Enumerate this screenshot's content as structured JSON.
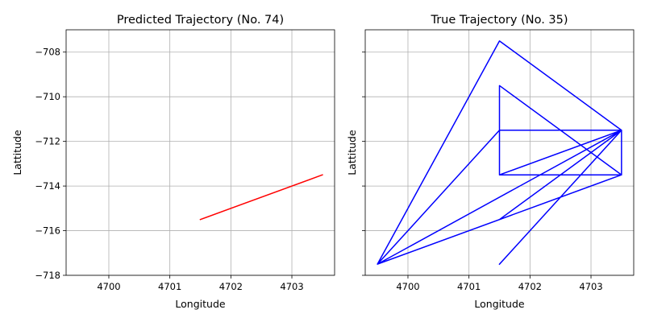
{
  "chart_data": [
    {
      "type": "line",
      "title": "Predicted Trajectory (No. 74)",
      "xlabel": "Longitude",
      "ylabel": "Lattitude",
      "xlim": [
        4699.3,
        4703.7
      ],
      "ylim": [
        -718,
        -707
      ],
      "xticks": [
        4700,
        4701,
        4702,
        4703
      ],
      "yticks": [
        -718,
        -716,
        -714,
        -712,
        -710,
        -708
      ],
      "grid": true,
      "series": [
        {
          "color": "#ff0000",
          "x": [
            4701.5,
            4703.5
          ],
          "y": [
            -715.5,
            -713.5
          ]
        }
      ]
    },
    {
      "type": "line",
      "title": "True Trajectory (No. 35)",
      "xlabel": "Longitude",
      "ylabel": "Lattitude",
      "xlim": [
        4699.3,
        4703.7
      ],
      "ylim": [
        -718,
        -707
      ],
      "xticks": [
        4700,
        4701,
        4702,
        4703
      ],
      "yticks": [
        -718,
        -716,
        -714,
        -712,
        -710,
        -708
      ],
      "grid": true,
      "series": [
        {
          "color": "#0000ff",
          "x": [
            4701.5,
            4703.5,
            4701.5,
            4703.5,
            4699.5,
            4703.5,
            4701.5,
            4703.5,
            4699.5,
            4701.5,
            4703.5,
            4703.5,
            4701.5,
            4701.5,
            4703.5,
            4703.5,
            4699.5,
            4701.5,
            4701.5,
            4703.5,
            4701.5
          ],
          "y": [
            -717.5,
            -711.5,
            -715.5,
            -713.5,
            -717.5,
            -711.5,
            -713.5,
            -711.5,
            -717.5,
            -711.5,
            -711.5,
            -713.5,
            -713.5,
            -709.5,
            -713.5,
            -711.5,
            -717.5,
            -707.5,
            -707.5,
            -711.5,
            -717.5
          ]
        }
      ]
    }
  ]
}
